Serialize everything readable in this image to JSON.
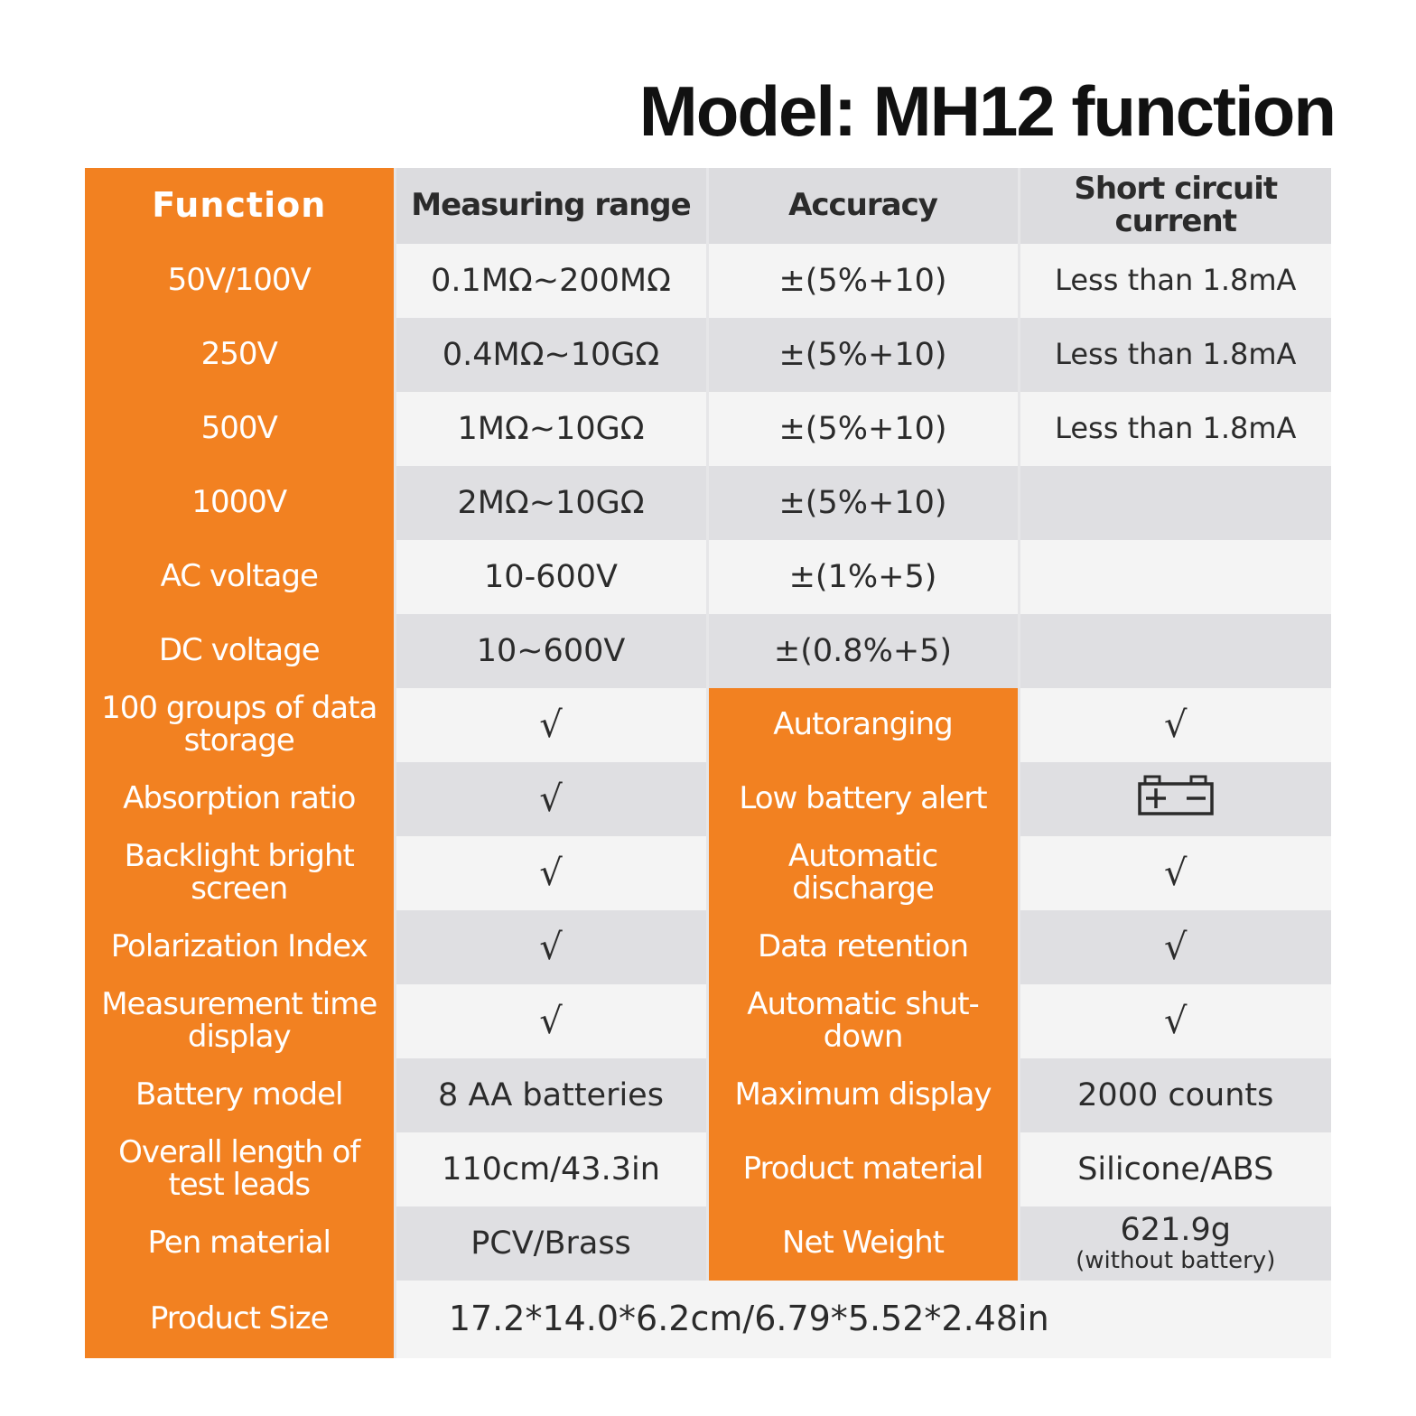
{
  "title": "Model: MH12 function",
  "header": {
    "function": "Function",
    "measuring_range": "Measuring range",
    "accuracy": "Accuracy",
    "short_circuit_current": "Short circuit current"
  },
  "range_rows": [
    {
      "function": "50V/100V",
      "range": "0.1MΩ~200MΩ",
      "accuracy": "±(5%+10)",
      "current": "Less than 1.8mA"
    },
    {
      "function": "250V",
      "range": "0.4MΩ~10GΩ",
      "accuracy": "±(5%+10)",
      "current": "Less than 1.8mA"
    },
    {
      "function": "500V",
      "range": "1MΩ~10GΩ",
      "accuracy": "±(5%+10)",
      "current": "Less than 1.8mA"
    },
    {
      "function": "1000V",
      "range": "2MΩ~10GΩ",
      "accuracy": "±(5%+10)",
      "current": ""
    },
    {
      "function": "AC voltage",
      "range": "10-600V",
      "accuracy": "±(1%+5)",
      "current": ""
    },
    {
      "function": "DC voltage",
      "range": "10~600V",
      "accuracy": "±(0.8%+5)",
      "current": ""
    }
  ],
  "feature_rows": [
    {
      "left_label": "100 groups of data storage",
      "left_value": "√",
      "right_label": "Autoranging",
      "right_value": "√"
    },
    {
      "left_label": "Absorption ratio",
      "left_value": "√",
      "right_label": "Low battery alert",
      "right_value": "",
      "right_icon": "battery-icon"
    },
    {
      "left_label": "Backlight bright screen",
      "left_value": "√",
      "right_label": "Automatic discharge",
      "right_value": "√"
    },
    {
      "left_label": "Polarization Index",
      "left_value": "√",
      "right_label": "Data retention",
      "right_value": "√"
    },
    {
      "left_label": "Measurement time display",
      "left_value": "√",
      "right_label": "Automatic shut-down",
      "right_value": "√"
    },
    {
      "left_label": "Battery model",
      "left_value": "8 AA batteries",
      "right_label": "Maximum display",
      "right_value": "2000 counts"
    },
    {
      "left_label": "Overall length of test leads",
      "left_value": "110cm/43.3in",
      "right_label": "Product material",
      "right_value": "Silicone/ABS"
    },
    {
      "left_label": "Pen material",
      "left_value": "PCV/Brass",
      "right_label": "Net Weight",
      "right_value": "621.9g",
      "right_note": "(without battery)"
    }
  ],
  "size_row": {
    "label": "Product Size",
    "value": "17.2*14.0*6.2cm/6.79*5.52*2.48in"
  },
  "colors": {
    "orange": "#f28121",
    "light_gray": "#f4f4f4",
    "dark_gray": "#dfdfe2"
  }
}
